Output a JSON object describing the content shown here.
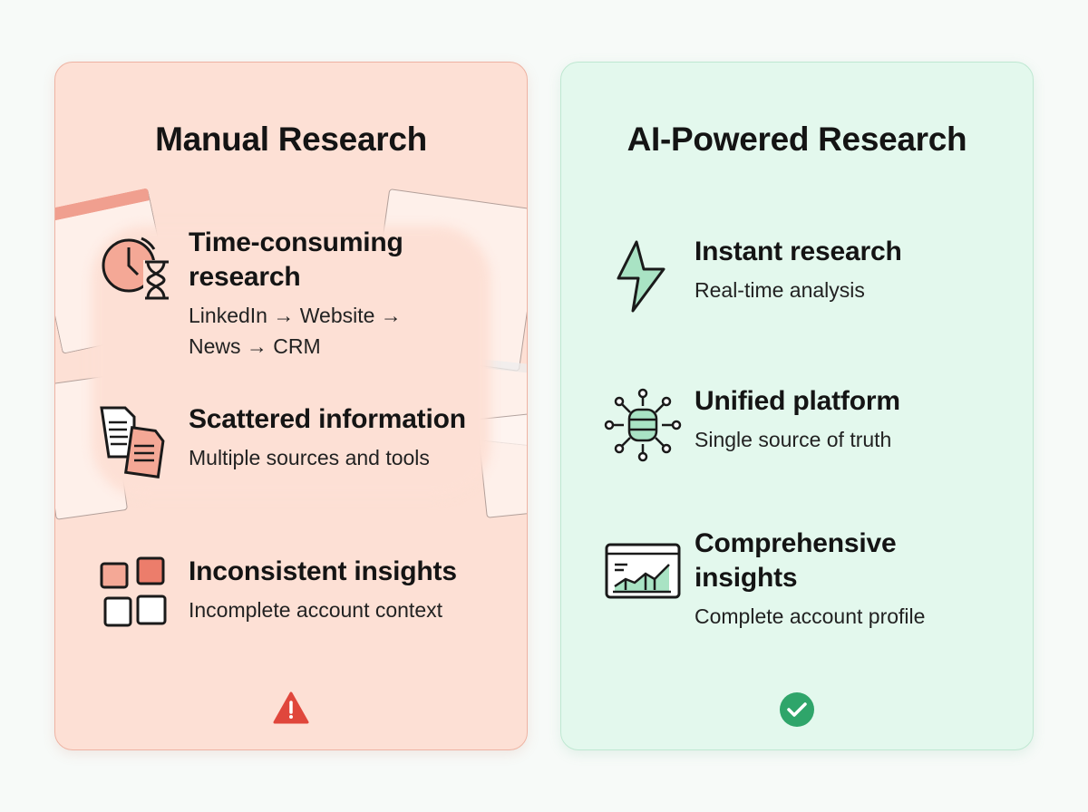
{
  "manual": {
    "title": "Manual Research",
    "accent": "#e0473c",
    "status_icon": "warning-icon",
    "items": [
      {
        "icon": "clock-hourglass-icon",
        "title": "Time-consuming research",
        "title_lines": [
          "Time-consuming",
          "research"
        ],
        "subtitle_lines": [
          "LinkedIn → Website →",
          "News → CRM"
        ]
      },
      {
        "icon": "documents-icon",
        "title": "Scattered information",
        "subtitle": "Multiple sources and tools"
      },
      {
        "icon": "puzzle-icon",
        "title": "Inconsistent insights",
        "subtitle": "Incomplete account context"
      }
    ]
  },
  "ai": {
    "title": "AI-Powered Research",
    "accent": "#2fa56a",
    "status_icon": "check-circle-icon",
    "items": [
      {
        "icon": "lightning-icon",
        "title": "Instant research",
        "subtitle": "Real-time analysis"
      },
      {
        "icon": "database-network-icon",
        "title": "Unified platform",
        "subtitle": "Single source of truth"
      },
      {
        "icon": "analytics-dashboard-icon",
        "title_lines": [
          "Comprehensive",
          "insights"
        ],
        "subtitle": "Complete account profile"
      }
    ]
  }
}
